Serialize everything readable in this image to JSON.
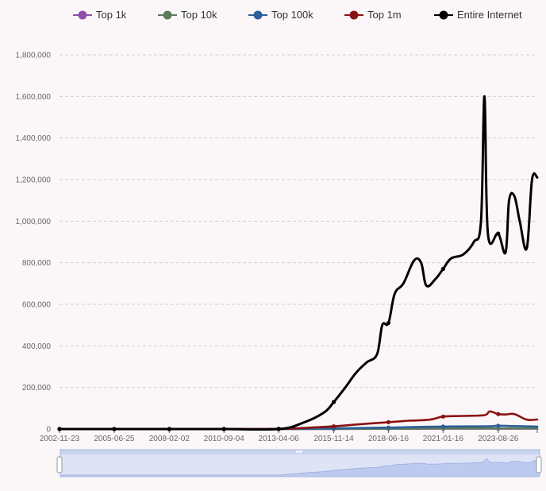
{
  "chart_data": {
    "type": "line",
    "title": "",
    "xlabel": "",
    "ylabel": "",
    "x_ticks": [
      "2002-11-23",
      "2005-06-25",
      "2008-02-02",
      "2010-09-04",
      "2013-04-06",
      "2015-11-14",
      "2018-06-16",
      "2021-01-16",
      "2023-08-26"
    ],
    "y_ticks": [
      "0",
      "200,000",
      "400,000",
      "600,000",
      "800,000",
      "1,000,000",
      "1,200,000",
      "1,400,000",
      "1,600,000",
      "1,800,000"
    ],
    "ylim": [
      0,
      1800000
    ],
    "xlim": [
      "2002-11-23",
      "2025-07-01"
    ],
    "grid": true,
    "legend_position": "top",
    "data_zoom": true,
    "series": [
      {
        "name": "Top 1k",
        "color": "#8e4fa7",
        "points": [
          [
            "2002-11-23",
            0
          ],
          [
            "2005-06-25",
            0
          ],
          [
            "2008-02-02",
            0
          ],
          [
            "2010-09-04",
            0
          ],
          [
            "2013-04-06",
            0
          ],
          [
            "2015-11-14",
            500
          ],
          [
            "2018-06-16",
            1000
          ],
          [
            "2021-01-16",
            1500
          ],
          [
            "2023-08-26",
            1500
          ],
          [
            "2025-07-01",
            1500
          ]
        ]
      },
      {
        "name": "Top 10k",
        "color": "#5b7b5a",
        "points": [
          [
            "2002-11-23",
            0
          ],
          [
            "2005-06-25",
            0
          ],
          [
            "2008-02-02",
            0
          ],
          [
            "2010-09-04",
            0
          ],
          [
            "2013-04-06",
            0
          ],
          [
            "2015-11-14",
            1000
          ],
          [
            "2018-06-16",
            2000
          ],
          [
            "2021-01-16",
            3000
          ],
          [
            "2023-08-26",
            3000
          ],
          [
            "2025-07-01",
            3000
          ]
        ]
      },
      {
        "name": "Top 100k",
        "color": "#2c5f96",
        "points": [
          [
            "2002-11-23",
            0
          ],
          [
            "2005-06-25",
            0
          ],
          [
            "2008-02-02",
            0
          ],
          [
            "2010-09-04",
            0
          ],
          [
            "2013-04-06",
            500
          ],
          [
            "2015-11-14",
            3000
          ],
          [
            "2018-06-16",
            7000
          ],
          [
            "2021-01-16",
            12000
          ],
          [
            "2023-03-01",
            13000
          ],
          [
            "2023-08-26",
            16000
          ],
          [
            "2024-06-01",
            14000
          ],
          [
            "2025-07-01",
            12000
          ]
        ]
      },
      {
        "name": "Top 1m",
        "color": "#8b1212",
        "points": [
          [
            "2002-11-23",
            0
          ],
          [
            "2005-06-25",
            0
          ],
          [
            "2008-02-02",
            0
          ],
          [
            "2010-09-04",
            0
          ],
          [
            "2013-04-06",
            1000
          ],
          [
            "2014-06-01",
            5000
          ],
          [
            "2015-11-14",
            13000
          ],
          [
            "2017-01-01",
            22000
          ],
          [
            "2018-06-16",
            33000
          ],
          [
            "2019-06-01",
            40000
          ],
          [
            "2020-06-01",
            45000
          ],
          [
            "2021-01-16",
            60000
          ],
          [
            "2022-01-01",
            63000
          ],
          [
            "2023-01-01",
            67000
          ],
          [
            "2023-04-01",
            85000
          ],
          [
            "2023-08-26",
            72000
          ],
          [
            "2024-01-01",
            70000
          ],
          [
            "2024-06-01",
            72000
          ],
          [
            "2025-01-01",
            45000
          ],
          [
            "2025-07-01",
            46000
          ]
        ]
      },
      {
        "name": "Entire Internet",
        "color": "#000000",
        "points": [
          [
            "2002-11-23",
            0
          ],
          [
            "2005-06-25",
            0
          ],
          [
            "2008-02-02",
            0
          ],
          [
            "2010-09-04",
            0
          ],
          [
            "2013-04-06",
            0
          ],
          [
            "2014-06-01",
            30000
          ],
          [
            "2015-06-01",
            80000
          ],
          [
            "2015-11-14",
            130000
          ],
          [
            "2016-06-01",
            200000
          ],
          [
            "2016-12-01",
            270000
          ],
          [
            "2017-06-01",
            320000
          ],
          [
            "2017-12-01",
            360000
          ],
          [
            "2018-03-01",
            500000
          ],
          [
            "2018-06-16",
            510000
          ],
          [
            "2018-10-01",
            650000
          ],
          [
            "2019-03-01",
            700000
          ],
          [
            "2019-09-01",
            810000
          ],
          [
            "2020-01-01",
            800000
          ],
          [
            "2020-04-01",
            690000
          ],
          [
            "2020-09-01",
            720000
          ],
          [
            "2021-01-16",
            770000
          ],
          [
            "2021-06-01",
            820000
          ],
          [
            "2022-01-01",
            840000
          ],
          [
            "2022-07-01",
            900000
          ],
          [
            "2022-11-01",
            1000000
          ],
          [
            "2023-01-01",
            1600000
          ],
          [
            "2023-03-01",
            940000
          ],
          [
            "2023-08-26",
            940000
          ],
          [
            "2024-01-01",
            850000
          ],
          [
            "2024-03-01",
            1100000
          ],
          [
            "2024-06-01",
            1120000
          ],
          [
            "2024-09-01",
            1000000
          ],
          [
            "2025-01-01",
            870000
          ],
          [
            "2025-04-01",
            1200000
          ],
          [
            "2025-07-01",
            1210000
          ]
        ]
      }
    ]
  }
}
